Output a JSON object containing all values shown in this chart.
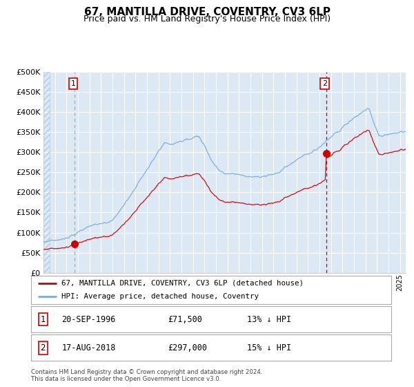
{
  "title": "67, MANTILLA DRIVE, COVENTRY, CV3 6LP",
  "subtitle": "Price paid vs. HM Land Registry's House Price Index (HPI)",
  "title_fontsize": 11,
  "subtitle_fontsize": 9,
  "background_color": "#ffffff",
  "plot_bg_color": "#dce9f5",
  "grid_color": "#ffffff",
  "red_line_color": "#cc0000",
  "blue_line_color": "#7aabdb",
  "marker_color": "#cc0000",
  "dashed_line1_color": "#aaaaaa",
  "dashed_line2_color": "#cc0000",
  "ylim": [
    0,
    500000
  ],
  "yticks": [
    0,
    50000,
    100000,
    150000,
    200000,
    250000,
    300000,
    350000,
    400000,
    450000,
    500000
  ],
  "sale1_x": 1996.72,
  "sale1_price": 71500,
  "sale2_x": 2018.62,
  "sale2_price": 297000,
  "legend_label_red": "67, MANTILLA DRIVE, COVENTRY, CV3 6LP (detached house)",
  "legend_label_blue": "HPI: Average price, detached house, Coventry",
  "footnote": "Contains HM Land Registry data © Crown copyright and database right 2024.\nThis data is licensed under the Open Government Licence v3.0.",
  "xstart": 1994.0,
  "xend": 2025.5
}
